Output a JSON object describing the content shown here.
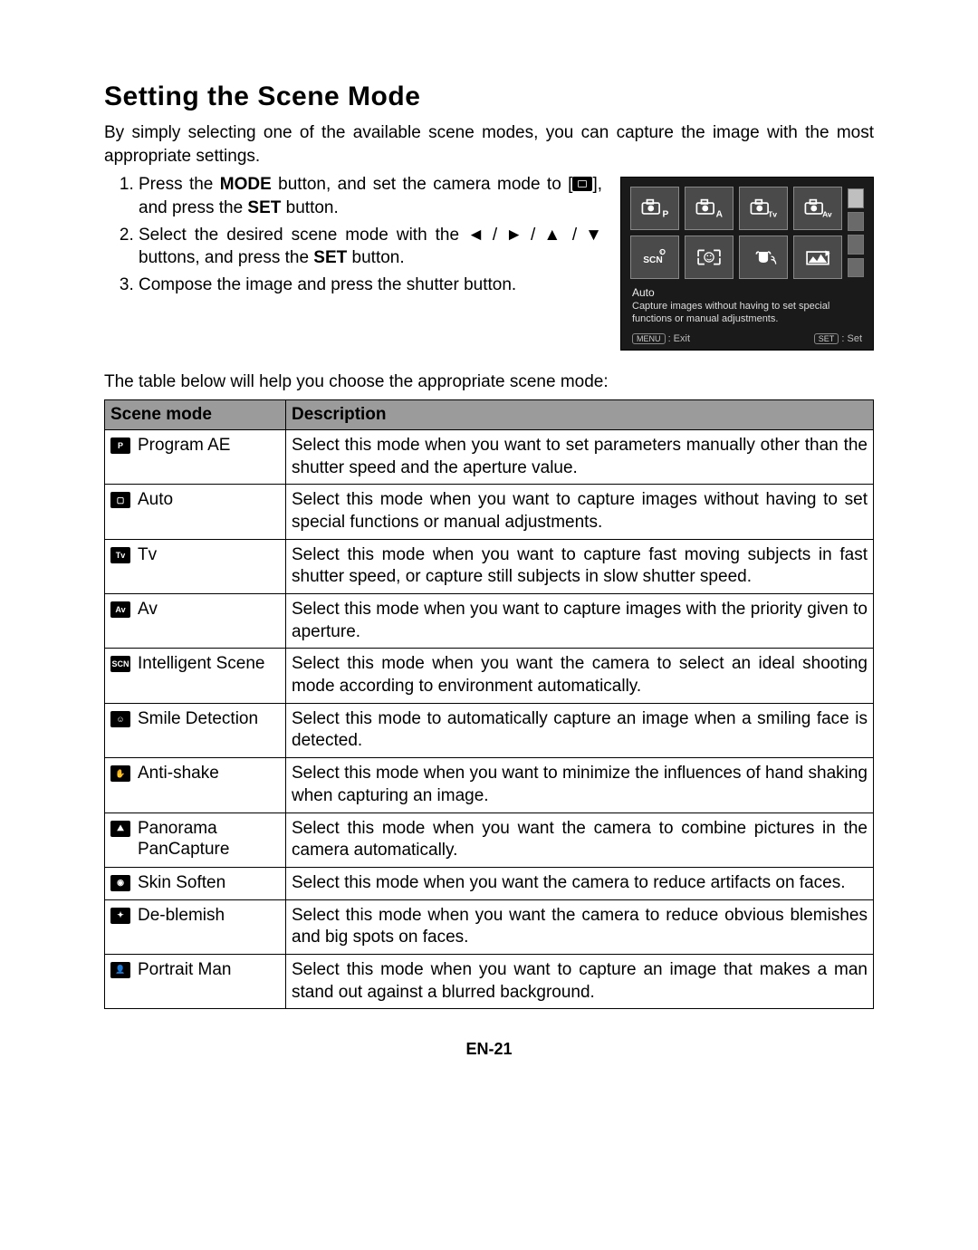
{
  "title": "Setting the Scene Mode",
  "intro": "By simply selecting one of the available scene modes, you can capture the image with the most appropriate settings.",
  "steps": {
    "s1a": "Press the ",
    "s1b": "MODE",
    "s1c": " button, and set the camera mode to [",
    "s1d": "], and press the ",
    "s1e": "SET",
    "s1f": " button.",
    "s2a": "Select the desired scene mode with the ◄ / ► / ▲ / ▼ buttons, and press the ",
    "s2b": "SET",
    "s2c": " button.",
    "s3": "Compose the image and press the shutter button."
  },
  "lcd": {
    "label": "Auto",
    "desc": "Capture images without having to set special functions or manual adjustments.",
    "menu_btn": "MENU",
    "menu_txt": ": Exit",
    "set_btn": "SET",
    "set_txt": ": Set"
  },
  "table_intro": "The table below will help you choose the appropriate scene mode:",
  "columns": {
    "mode": "Scene mode",
    "desc": "Description"
  },
  "rows": [
    {
      "icon": "P",
      "name": "Program AE",
      "desc": "Select this mode when you want to set parameters manually other than the shutter speed and the aperture value."
    },
    {
      "icon": "▢",
      "name": "Auto",
      "desc": "Select this mode when you want to capture images without having to set special functions or manual adjustments."
    },
    {
      "icon": "Tv",
      "name": "Tv",
      "desc": "Select this mode when you want to capture fast moving subjects in fast shutter speed, or capture still subjects in slow shutter speed."
    },
    {
      "icon": "Av",
      "name": "Av",
      "desc": "Select this mode when you want to capture images with the priority given to aperture."
    },
    {
      "icon": "SCN",
      "name": "Intelligent Scene",
      "desc": "Select this mode when you want the camera to select an ideal shooting mode according to environment automatically."
    },
    {
      "icon": "☺",
      "name": "Smile Detection",
      "desc": "Select this mode to automatically capture an image when a smiling face is detected."
    },
    {
      "icon": "✋",
      "name": "Anti-shake",
      "desc": "Select this mode when you want to minimize the influences of hand shaking when capturing an image."
    },
    {
      "icon": "⛰",
      "name": "Panorama PanCapture",
      "desc": "Select this mode when you want the camera to combine pictures in the camera automatically."
    },
    {
      "icon": "◉",
      "name": "Skin Soften",
      "desc": "Select this mode when you want the camera to reduce artifacts on faces."
    },
    {
      "icon": "✦",
      "name": "De-blemish",
      "desc": "Select this mode when you want the camera to reduce obvious blemishes and big spots on faces."
    },
    {
      "icon": "👤",
      "name": "Portrait Man",
      "desc": "Select this mode when you want to capture an image that makes a man stand out against a blurred background."
    }
  ],
  "page_number": "EN-21"
}
